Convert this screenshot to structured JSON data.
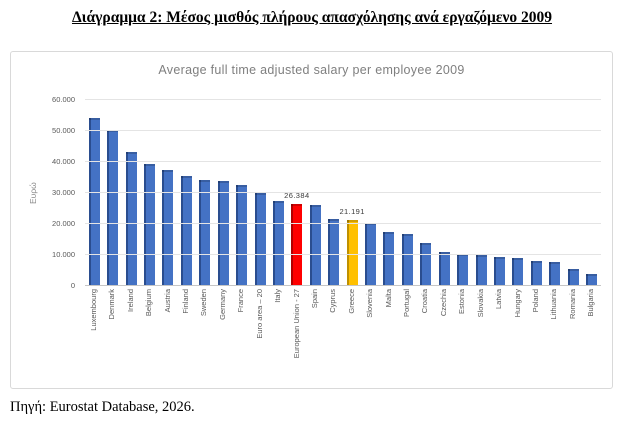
{
  "page": {
    "title": "Διάγραμμα 2: Μέσος μισθός πλήρους απασχόλησης ανά εργαζόμενο 2009",
    "source": "Πηγή: Eurostat Database, 2026."
  },
  "chart_data": {
    "type": "bar",
    "title": "Average full time adjusted salary per employee 2009",
    "xlabel": "",
    "ylabel": "Ευρώ",
    "ylim": [
      0,
      60000
    ],
    "ytick_step": 10000,
    "ytick_labels": [
      "60.000",
      "50.000",
      "40.000",
      "30.000",
      "20.000",
      "10.000",
      "0"
    ],
    "grid": true,
    "legend": false,
    "colors": {
      "blue": {
        "main": "#4472c4",
        "dark": "#2a4d8f"
      },
      "red": {
        "main": "#ff0000",
        "dark": "#b30000"
      },
      "yellow": {
        "main": "#ffc000",
        "dark": "#bf9000"
      }
    },
    "bars": [
      {
        "category": "Luxembourg",
        "value": 54100,
        "color": "blue"
      },
      {
        "category": "Denmark",
        "value": 50300,
        "color": "blue"
      },
      {
        "category": "Ireland",
        "value": 43100,
        "color": "blue"
      },
      {
        "category": "Belgium",
        "value": 39300,
        "color": "blue"
      },
      {
        "category": "Austria",
        "value": 37300,
        "color": "blue"
      },
      {
        "category": "Finland",
        "value": 35600,
        "color": "blue"
      },
      {
        "category": "Sweden",
        "value": 34100,
        "color": "blue"
      },
      {
        "category": "Germany",
        "value": 34000,
        "color": "blue"
      },
      {
        "category": "France",
        "value": 32500,
        "color": "blue"
      },
      {
        "category": "Euro area – 20",
        "value": 30100,
        "color": "blue"
      },
      {
        "category": "Italy",
        "value": 27300,
        "color": "blue"
      },
      {
        "category": "European Union - 27",
        "value": 26384,
        "color": "red",
        "label": "26.384"
      },
      {
        "category": "Spain",
        "value": 26100,
        "color": "blue"
      },
      {
        "category": "Cyprus",
        "value": 21700,
        "color": "blue"
      },
      {
        "category": "Greece",
        "value": 21191,
        "color": "yellow",
        "label": "21.191"
      },
      {
        "category": "Slovenia",
        "value": 20300,
        "color": "blue"
      },
      {
        "category": "Malta",
        "value": 17400,
        "color": "blue"
      },
      {
        "category": "Portugal",
        "value": 16700,
        "color": "blue"
      },
      {
        "category": "Croatia",
        "value": 13800,
        "color": "blue"
      },
      {
        "category": "Czechia",
        "value": 11100,
        "color": "blue"
      },
      {
        "category": "Estonia",
        "value": 10200,
        "color": "blue"
      },
      {
        "category": "Slovakia",
        "value": 10000,
        "color": "blue"
      },
      {
        "category": "Latvia",
        "value": 9250,
        "color": "blue"
      },
      {
        "category": "Hungary",
        "value": 8900,
        "color": "blue"
      },
      {
        "category": "Poland",
        "value": 8150,
        "color": "blue"
      },
      {
        "category": "Lithuania",
        "value": 7850,
        "color": "blue"
      },
      {
        "category": "Romania",
        "value": 5500,
        "color": "blue"
      },
      {
        "category": "Bulgaria",
        "value": 3750,
        "color": "blue"
      }
    ]
  }
}
